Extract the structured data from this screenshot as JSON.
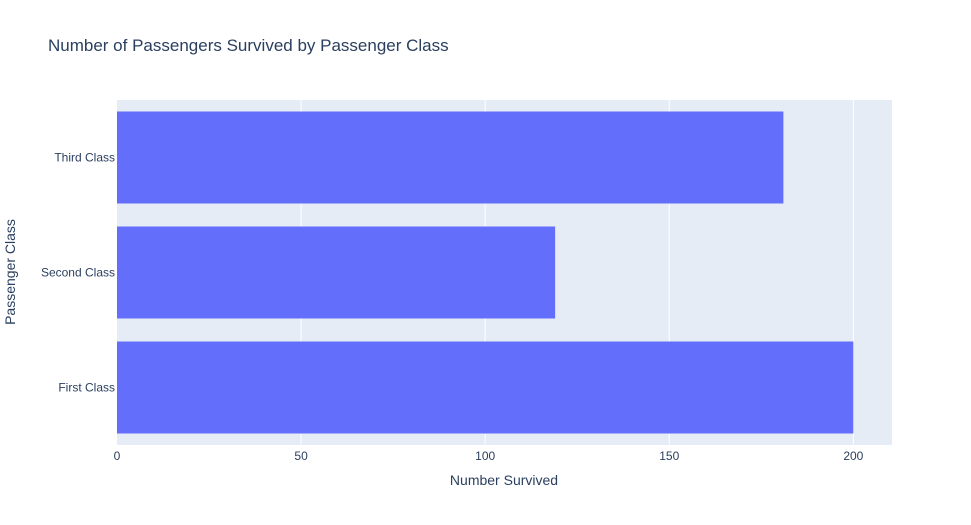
{
  "chart_data": {
    "type": "bar",
    "orientation": "horizontal",
    "title": "Number of Passengers Survived by Passenger Class",
    "xlabel": "Number Survived",
    "ylabel": "Passenger Class",
    "categories": [
      "First Class",
      "Second Class",
      "Third Class"
    ],
    "values": [
      200,
      119,
      181
    ],
    "xlim": [
      0,
      210.5
    ],
    "xticks": [
      0,
      50,
      100,
      150,
      200
    ],
    "grid": true,
    "legend": "none"
  },
  "colors": {
    "bar": "#636efa",
    "plot_background": "#e5ecf6",
    "grid": "#ffffff",
    "text": "#2a3f5f"
  }
}
